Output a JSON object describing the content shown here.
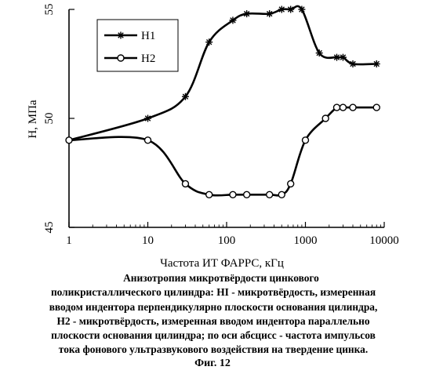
{
  "chart_data": {
    "type": "line",
    "x_scale": "log",
    "xlabel": "Частота ИТ ФАРРС, кГц",
    "ylabel": "H, МПа",
    "xlim": [
      1,
      10000
    ],
    "ylim": [
      45,
      55
    ],
    "x_ticks": [
      "1",
      "10",
      "100",
      "1000",
      "10000"
    ],
    "y_ticks": [
      "45",
      "50",
      "55"
    ],
    "grid": false,
    "legend_position": "top-left",
    "series": [
      {
        "name": "H1",
        "marker": "asterisk",
        "color": "#000000",
        "x": [
          1,
          10,
          30,
          60,
          120,
          180,
          350,
          500,
          650,
          900,
          1500,
          2500,
          3000,
          4000,
          8000
        ],
        "y": [
          49.0,
          50.0,
          51.0,
          53.5,
          54.5,
          54.8,
          54.8,
          55.0,
          55.0,
          55.0,
          53.0,
          52.8,
          52.8,
          52.5,
          52.5
        ]
      },
      {
        "name": "H2",
        "marker": "circle",
        "color": "#000000",
        "x": [
          1,
          10,
          30,
          60,
          120,
          180,
          350,
          500,
          650,
          1000,
          1800,
          2500,
          3000,
          4000,
          8000
        ],
        "y": [
          49.0,
          49.0,
          47.0,
          46.5,
          46.5,
          46.5,
          46.5,
          46.5,
          47.0,
          49.0,
          50.0,
          50.5,
          50.5,
          50.5,
          50.5
        ]
      }
    ]
  },
  "caption": {
    "lines": [
      "Анизотропия микротвёрдости цинкового",
      "поликристаллического цилиндра: HI - микротвёрдость, измеренная",
      "вводом индентора перпендикулярно плоскости основания цилиндра,",
      "H2 - микротвёрдость, измеренная вводом индентора параллельно",
      "плоскости основания цилиндра; по оси абсцисс - частота импульсов",
      "тока  фонового ультразвукового воздействия на твердение цинка."
    ],
    "figure_label": "Фиг. 12"
  }
}
